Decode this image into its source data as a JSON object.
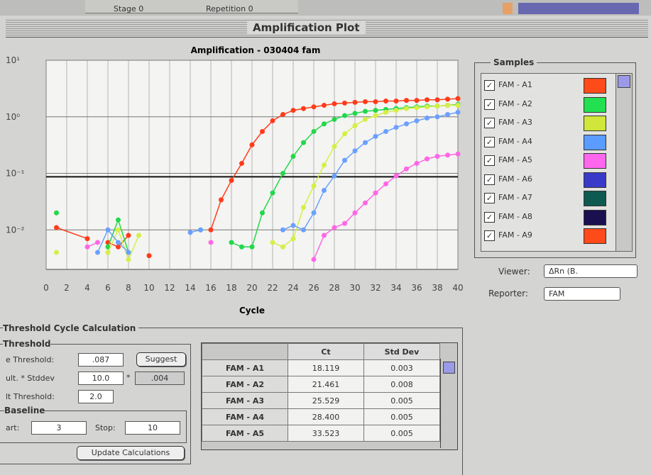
{
  "top_strip": {
    "stage": "Stage 0",
    "repetition": "Repetition 0"
  },
  "window": {
    "title": "Amplification Plot"
  },
  "chart_data": {
    "type": "line",
    "title": "Amplification - 030404 fam",
    "x_label": "Cycle",
    "log_y": true,
    "grid": true,
    "xlim": [
      0,
      40
    ],
    "ylim": [
      0.002,
      10
    ],
    "xticks": [
      0,
      2,
      4,
      6,
      8,
      10,
      12,
      14,
      16,
      18,
      20,
      22,
      24,
      26,
      28,
      30,
      32,
      34,
      36,
      38,
      40
    ],
    "yticks": [
      {
        "value": 10,
        "label": "10¹"
      },
      {
        "value": 1,
        "label": "10⁰"
      },
      {
        "value": 0.1,
        "label": "10⁻¹"
      },
      {
        "value": 0.01,
        "label": "10⁻²"
      }
    ],
    "threshold": {
      "value": 0.087,
      "label": ".087"
    },
    "x": [
      1,
      4,
      5,
      6,
      7,
      8,
      9,
      10,
      14,
      15,
      16,
      17,
      18,
      19,
      20,
      21,
      22,
      23,
      24,
      25,
      26,
      27,
      28,
      29,
      30,
      31,
      32,
      33,
      34,
      35,
      36,
      37,
      38,
      39,
      40
    ],
    "series": [
      {
        "color": "#ff3b1a",
        "values": [
          0.011,
          0.007,
          null,
          0.006,
          0.005,
          0.008,
          null,
          0.0035,
          null,
          null,
          0.01,
          0.034,
          0.075,
          0.15,
          0.32,
          0.55,
          0.85,
          1.1,
          1.3,
          1.4,
          1.5,
          1.6,
          1.7,
          1.75,
          1.8,
          1.85,
          1.85,
          1.9,
          1.9,
          1.95,
          1.95,
          2.0,
          2.0,
          2.05,
          2.1
        ]
      },
      {
        "color": "#22d84a",
        "values": [
          0.02,
          null,
          null,
          0.005,
          0.015,
          0.004,
          null,
          null,
          null,
          0.01,
          null,
          null,
          0.006,
          0.005,
          0.005,
          0.02,
          0.045,
          0.1,
          0.2,
          0.35,
          0.55,
          0.75,
          0.9,
          1.05,
          1.15,
          1.25,
          1.3,
          1.35,
          1.4,
          1.45,
          1.5,
          1.55,
          1.55,
          1.6,
          1.65
        ]
      },
      {
        "color": "#d6ee46",
        "values": [
          0.004,
          null,
          null,
          0.004,
          0.01,
          0.003,
          0.008,
          null,
          null,
          null,
          null,
          null,
          null,
          null,
          null,
          null,
          0.006,
          0.005,
          0.007,
          0.025,
          0.06,
          0.14,
          0.3,
          0.5,
          0.7,
          0.9,
          1.05,
          1.2,
          1.3,
          1.4,
          1.45,
          1.5,
          1.55,
          1.6,
          1.6
        ]
      },
      {
        "color": "#6aa0ff",
        "values": [
          null,
          null,
          0.004,
          0.01,
          0.006,
          0.004,
          null,
          null,
          0.009,
          0.01,
          null,
          null,
          null,
          null,
          null,
          null,
          null,
          0.01,
          0.012,
          0.01,
          0.02,
          0.05,
          0.09,
          0.17,
          0.25,
          0.35,
          0.45,
          0.55,
          0.65,
          0.75,
          0.85,
          0.95,
          1.0,
          1.1,
          1.2
        ]
      },
      {
        "color": "#ff66e6",
        "values": [
          null,
          0.005,
          0.006,
          null,
          null,
          null,
          null,
          null,
          null,
          null,
          0.006,
          null,
          null,
          null,
          null,
          null,
          null,
          null,
          null,
          null,
          0.003,
          0.008,
          0.011,
          0.013,
          0.02,
          0.03,
          0.045,
          0.065,
          0.09,
          0.12,
          0.15,
          0.18,
          0.2,
          0.21,
          0.22
        ]
      }
    ]
  },
  "samples": {
    "heading": "Samples",
    "items": [
      {
        "label": "FAM - A1",
        "color": "#ff4a1a"
      },
      {
        "label": "FAM - A2",
        "color": "#22e050"
      },
      {
        "label": "FAM - A3",
        "color": "#d0e63a"
      },
      {
        "label": "FAM - A4",
        "color": "#5a9cff"
      },
      {
        "label": "FAM - A5",
        "color": "#ff66ee"
      },
      {
        "label": "FAM - A6",
        "color": "#3a3ac8"
      },
      {
        "label": "FAM - A7",
        "color": "#0e5a50"
      },
      {
        "label": "FAM - A8",
        "color": "#1a1050"
      },
      {
        "label": "FAM - A9",
        "color": "#ff4a1a"
      }
    ]
  },
  "viewer": {
    "label": "Viewer:",
    "value": "ΔRn (B."
  },
  "reporter": {
    "label": "Reporter:",
    "value": "FAM"
  },
  "threshold_panel": {
    "heading": "Threshold Cycle Calculation",
    "group": "Threshold",
    "manual_label": "e Threshold:",
    "suggest": "Suggest",
    "mult_label": "ult. * Stddev",
    "mult_value": "10.0",
    "times": "*",
    "stddev_value": ".004",
    "auto_label": "lt Threshold:",
    "auto_value": "2.0",
    "baseline": "Baseline",
    "start_label": "art:",
    "start_value": "3",
    "stop_label": "Stop:",
    "stop_value": "10",
    "update": "Update Calculations"
  },
  "table": {
    "headers": [
      "Ct",
      "Std Dev"
    ],
    "rows": [
      [
        "FAM - A1",
        "18.119",
        "0.003"
      ],
      [
        "FAM - A2",
        "21.461",
        "0.008"
      ],
      [
        "FAM - A3",
        "25.529",
        "0.005"
      ],
      [
        "FAM - A4",
        "28.400",
        "0.005"
      ],
      [
        "FAM - A5",
        "33.523",
        "0.005"
      ]
    ]
  }
}
